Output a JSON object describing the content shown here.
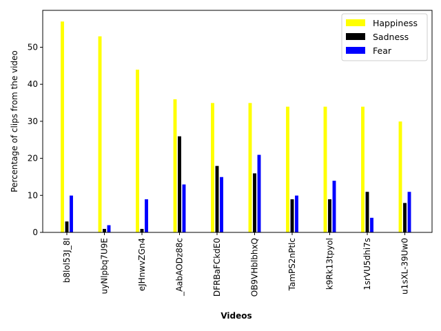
{
  "chart_data": {
    "type": "bar",
    "xlabel": "Videos",
    "ylabel": "Percentage of clips from the video",
    "ylim": [
      0,
      60
    ],
    "yticks": [
      0,
      10,
      20,
      30,
      40,
      50
    ],
    "grid": false,
    "legend_position": "top-right",
    "categories": [
      "b8lol53J_8I",
      "uyNlpbq7U9E",
      "eJHnwvZGn4",
      "_AabAODz88c",
      "DFRBaFCkdE0",
      "OB9VHblbhxQ",
      "TamPS2nPtlc",
      "k9Rk13tpyol",
      "1srVU5dhi7s",
      "u1sXL-39Uw0"
    ],
    "series": [
      {
        "name": "Happiness",
        "color": "#ffff00",
        "values": [
          57,
          53,
          44,
          36,
          35,
          35,
          34,
          34,
          34,
          30
        ]
      },
      {
        "name": "Sadness",
        "color": "#000000",
        "values": [
          3,
          1,
          1,
          26,
          18,
          16,
          9,
          9,
          11,
          8
        ]
      },
      {
        "name": "Fear",
        "color": "#0000ff",
        "values": [
          10,
          2,
          9,
          13,
          15,
          21,
          10,
          14,
          4,
          11
        ]
      }
    ]
  }
}
